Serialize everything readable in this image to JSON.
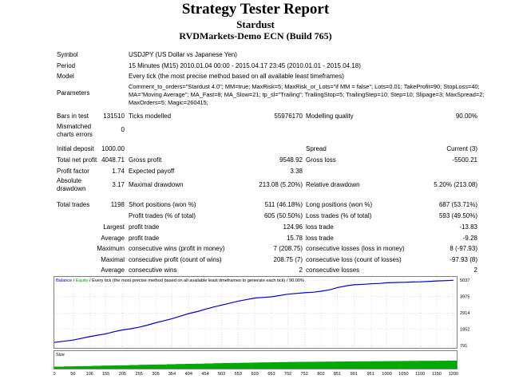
{
  "header": {
    "title": "Strategy Tester Report",
    "ea_name": "Stardust",
    "server": "RVDMarkets-Demo ECN (Build 765)"
  },
  "info": {
    "symbol_label": "Symbol",
    "symbol_value": "USDJPY (US Dollar vs Japanese Yen)",
    "period_label": "Period",
    "period_value": "15 Minutes (M15) 2010.01.04 00:00 - 2015.04.17 23:45 (2010.01.01 - 2015.04.18)",
    "model_label": "Model",
    "model_value": "Every tick (the most precise method based on all available least timeframes)",
    "parameters_label": "Parameters",
    "parameters_value": "Comment_to_orders=\"Stardust 4.0\"; MM=true; MaxRisk=5; MaxRisk_or_Lots=\"if MM = false\"; Lots=0.01; TakeProfit=90; StopLoss=40; MA=\"Moving Average\"; MA_Fast=8; MA_Slow=21; tp_sl=\"Trailing\"; TrailingStop=5; TrailingStep=10; Step=10; Slipage=3; MaxSpread=2; MaxOrders=5; Magic=260415;"
  },
  "stats": {
    "bars_label": "Bars in test",
    "bars_value": "131510",
    "ticks_label": "Ticks modelled",
    "ticks_value": "55976170",
    "quality_label": "Modelling quality",
    "quality_value": "90.00%",
    "mismatch_label": "Mismatched charts errors",
    "mismatch_value": "0",
    "deposit_label": "Initial deposit",
    "deposit_value": "1000.00",
    "spread_label": "Spread",
    "spread_value": "Current (3)",
    "net_label": "Total net profit",
    "net_value": "4048.71",
    "gross_profit_label": "Gross profit",
    "gross_profit_value": "9548.92",
    "gross_loss_label": "Gross loss",
    "gross_loss_value": "-5500.21",
    "pf_label": "Profit factor",
    "pf_value": "1.74",
    "payoff_label": "Expected payoff",
    "payoff_value": "3.38",
    "abs_dd_label": "Absolute drawdown",
    "abs_dd_value": "3.17",
    "max_dd_label": "Maximal drawdown",
    "max_dd_value": "213.08 (5.20%)",
    "rel_dd_label": "Relative drawdown",
    "rel_dd_value": "5.20% (213.08)",
    "trades_label": "Total trades",
    "trades_value": "1198",
    "short_label": "Short positions (won %)",
    "short_value": "511 (46.18%)",
    "long_label": "Long positions (won %)",
    "long_value": "687 (53.71%)",
    "pt_label": "Profit trades (% of total)",
    "pt_value": "605 (50.50%)",
    "lt_label": "Loss trades (% of total)",
    "lt_value": "593 (49.50%)",
    "largest_label": "Largest",
    "avg_label": "Average",
    "maximum_label": "Maximum",
    "maximal_label": "Maximal",
    "average2_label": "Average",
    "lpt_label": "profit trade",
    "lpt_value": "124.96",
    "llt_label": "loss trade",
    "llt_value": "-13.83",
    "apt_label": "profit trade",
    "apt_value": "15.78",
    "alt_label": "loss trade",
    "alt_value": "-9.28",
    "mcw_label": "consecutive wins (profit in money)",
    "mcw_value": "7 (208.75)",
    "mcl_label": "consecutive losses (loss in money)",
    "mcl_value": "8 (-97.93)",
    "mcp_label": "consecutive profit (count of wins)",
    "mcp_value": "208.75 (7)",
    "mcll_label": "consecutive loss (count of losses)",
    "mcll_value": "-97.93 (8)",
    "acw_label": "consecutive wins",
    "acw_value": "2",
    "acl_label": "consecutive losses",
    "acl_value": "2"
  },
  "chart_data": {
    "type": "line",
    "legend": {
      "balance": "Balance",
      "sep": " / ",
      "equity": "Equity",
      "rest": " / Every tick (the most precise method based on all available least timeframes to generate each tick) / 90.00%"
    },
    "colors": {
      "balance": "#0000cc",
      "equity": "#00aa00",
      "size": "#00aa00",
      "grid": "#c0c0c0"
    },
    "size_label": "Size",
    "y_ticks": [
      791,
      1852,
      2914,
      3975,
      5037
    ],
    "x_ticks": [
      0,
      56,
      106,
      155,
      205,
      255,
      305,
      354,
      404,
      454,
      503,
      553,
      603,
      653,
      702,
      752,
      802,
      851,
      901,
      951,
      1000,
      1050,
      1100,
      1150,
      1200
    ],
    "xlim": [
      0,
      1210
    ],
    "ylim": [
      700,
      5200
    ],
    "balance_x": [
      0,
      25,
      55,
      80,
      106,
      130,
      155,
      180,
      205,
      230,
      255,
      280,
      305,
      330,
      354,
      380,
      404,
      430,
      454,
      480,
      503,
      530,
      553,
      580,
      603,
      630,
      653,
      680,
      702,
      730,
      752,
      780,
      802,
      830,
      851,
      880,
      901,
      930,
      951,
      980,
      1000,
      1030,
      1050,
      1080,
      1100,
      1130,
      1150,
      1180,
      1200
    ],
    "balance_y": [
      1000,
      1070,
      1150,
      1260,
      1380,
      1470,
      1560,
      1700,
      1810,
      1890,
      1990,
      2120,
      2280,
      2410,
      2540,
      2710,
      2870,
      3000,
      3150,
      3300,
      3420,
      3560,
      3680,
      3790,
      3880,
      3920,
      3960,
      4050,
      4130,
      4180,
      4220,
      4260,
      4320,
      4420,
      4560,
      4680,
      4740,
      4770,
      4800,
      4830,
      4870,
      4890,
      4900,
      4920,
      4930,
      4960,
      4990,
      5010,
      5030
    ],
    "size_series": [
      0.25,
      0.28,
      0.3,
      0.32,
      0.35,
      0.38,
      0.4,
      0.42,
      0.45,
      0.48,
      0.5,
      0.52,
      0.55,
      0.58,
      0.6,
      0.62,
      0.65,
      0.68,
      0.7,
      0.72,
      0.74,
      0.76,
      0.78,
      0.8,
      0.82,
      0.84,
      0.85,
      0.86,
      0.87,
      0.88,
      0.89,
      0.9,
      0.91,
      0.92,
      0.93,
      0.94,
      0.95,
      0.96,
      0.97,
      0.98,
      0.98,
      0.99,
      1.0
    ]
  }
}
